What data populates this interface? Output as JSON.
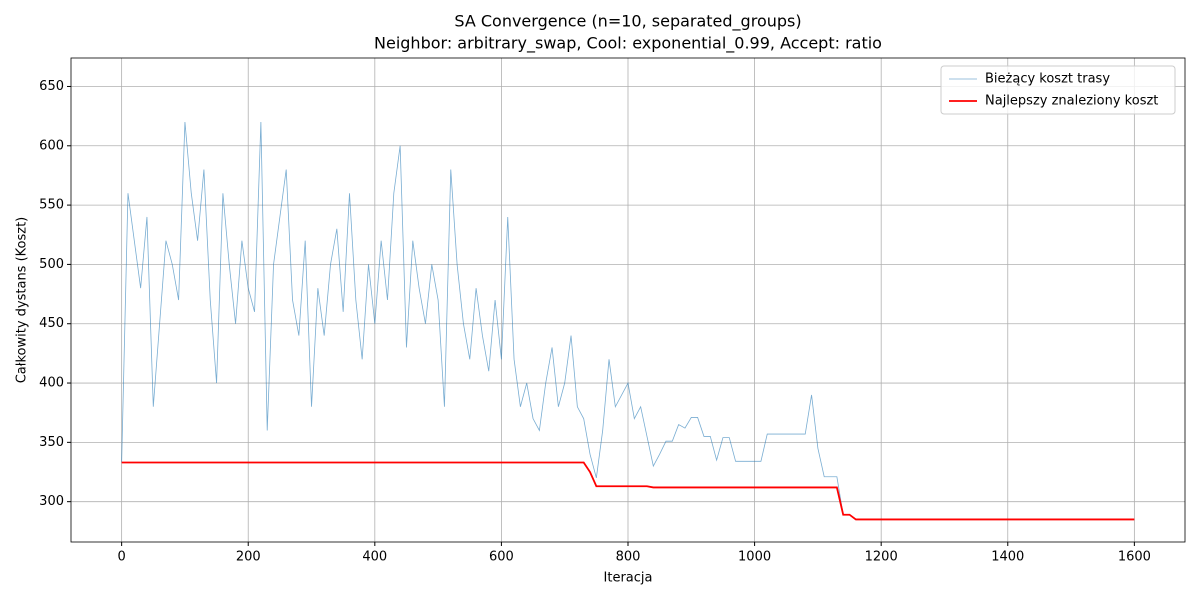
{
  "chart_data": {
    "type": "line",
    "title": "SA Convergence (n=10, separated_groups)",
    "subtitle": "Neighbor: arbitrary_swap, Cool: exponential_0.99, Accept: ratio",
    "x_label": "Iteracja",
    "y_label": "Całkowity dystans (Koszt)",
    "x": [
      0,
      10,
      20,
      30,
      40,
      50,
      60,
      70,
      80,
      90,
      100,
      110,
      120,
      130,
      140,
      150,
      160,
      170,
      180,
      190,
      200,
      210,
      220,
      230,
      240,
      250,
      260,
      270,
      280,
      290,
      300,
      310,
      320,
      330,
      340,
      350,
      360,
      370,
      380,
      390,
      400,
      410,
      420,
      430,
      440,
      450,
      460,
      470,
      480,
      490,
      500,
      510,
      520,
      530,
      540,
      550,
      560,
      570,
      580,
      590,
      600,
      610,
      620,
      630,
      640,
      650,
      660,
      670,
      680,
      690,
      700,
      710,
      720,
      730,
      740,
      750,
      760,
      770,
      780,
      790,
      800,
      810,
      820,
      830,
      840,
      850,
      860,
      870,
      880,
      890,
      900,
      910,
      920,
      930,
      940,
      950,
      960,
      970,
      980,
      990,
      1000,
      1010,
      1020,
      1030,
      1040,
      1050,
      1060,
      1070,
      1080,
      1090,
      1100,
      1110,
      1120,
      1130,
      1140,
      1150,
      1160,
      1170,
      1180,
      1190,
      1200,
      1210,
      1220,
      1230,
      1240,
      1250,
      1260,
      1270,
      1280,
      1290,
      1300,
      1310,
      1320,
      1330,
      1340,
      1350,
      1360,
      1370,
      1380,
      1390,
      1400,
      1410,
      1420,
      1430,
      1440,
      1450,
      1460,
      1470,
      1480,
      1490,
      1500,
      1510,
      1520,
      1530,
      1540,
      1550,
      1560,
      1570,
      1580,
      1590,
      1600
    ],
    "series": [
      {
        "name": "Bieżący koszt trasy",
        "color": "#1f77b4",
        "width": 0.8,
        "opacity": 0.6,
        "values": [
          333,
          560,
          520,
          480,
          540,
          380,
          450,
          520,
          500,
          470,
          620,
          560,
          520,
          580,
          470,
          400,
          560,
          500,
          450,
          520,
          480,
          460,
          620,
          360,
          500,
          540,
          580,
          470,
          440,
          520,
          380,
          480,
          440,
          500,
          530,
          460,
          560,
          470,
          420,
          500,
          450,
          520,
          470,
          560,
          600,
          430,
          520,
          480,
          450,
          500,
          470,
          380,
          580,
          500,
          450,
          420,
          480,
          440,
          410,
          470,
          420,
          540,
          420,
          380,
          400,
          370,
          360,
          400,
          430,
          380,
          400,
          440,
          380,
          370,
          340,
          320,
          360,
          420,
          380,
          390,
          400,
          370,
          380,
          355,
          330,
          340,
          351,
          351,
          365,
          362,
          371,
          371,
          355,
          355,
          335,
          354,
          354,
          334,
          334,
          334,
          334,
          334,
          357,
          357,
          357,
          357,
          357,
          357,
          357,
          390,
          345,
          321,
          321,
          321,
          289,
          289,
          285,
          285,
          285,
          285,
          285,
          285,
          285,
          285,
          285,
          285,
          285,
          285,
          285,
          285,
          285,
          285,
          285,
          285,
          285,
          285,
          285,
          285,
          285,
          285,
          285,
          285,
          285,
          285,
          285,
          285,
          285,
          285,
          285,
          285,
          285,
          285,
          285,
          285,
          285,
          285,
          285,
          285,
          285,
          285,
          285
        ]
      },
      {
        "name": "Najlepszy znaleziony koszt",
        "color": "#ff0000",
        "width": 1.8,
        "opacity": 1,
        "values": [
          333,
          333,
          333,
          333,
          333,
          333,
          333,
          333,
          333,
          333,
          333,
          333,
          333,
          333,
          333,
          333,
          333,
          333,
          333,
          333,
          333,
          333,
          333,
          333,
          333,
          333,
          333,
          333,
          333,
          333,
          333,
          333,
          333,
          333,
          333,
          333,
          333,
          333,
          333,
          333,
          333,
          333,
          333,
          333,
          333,
          333,
          333,
          333,
          333,
          333,
          333,
          333,
          333,
          333,
          333,
          333,
          333,
          333,
          333,
          333,
          333,
          333,
          333,
          333,
          333,
          333,
          333,
          333,
          333,
          333,
          333,
          333,
          333,
          333,
          325,
          313,
          313,
          313,
          313,
          313,
          313,
          313,
          313,
          313,
          312,
          312,
          312,
          312,
          312,
          312,
          312,
          312,
          312,
          312,
          312,
          312,
          312,
          312,
          312,
          312,
          312,
          312,
          312,
          312,
          312,
          312,
          312,
          312,
          312,
          312,
          312,
          312,
          312,
          312,
          289,
          289,
          285,
          285,
          285,
          285,
          285,
          285,
          285,
          285,
          285,
          285,
          285,
          285,
          285,
          285,
          285,
          285,
          285,
          285,
          285,
          285,
          285,
          285,
          285,
          285,
          285,
          285,
          285,
          285,
          285,
          285,
          285,
          285,
          285,
          285,
          285,
          285,
          285,
          285,
          285,
          285,
          285,
          285,
          285,
          285,
          285
        ]
      }
    ],
    "xlim": [
      -80,
      1680
    ],
    "ylim": [
      266,
      674
    ],
    "xticks": [
      0,
      200,
      400,
      600,
      800,
      1000,
      1200,
      1400,
      1600
    ],
    "yticks": [
      300,
      350,
      400,
      450,
      500,
      550,
      600,
      650
    ],
    "grid": true,
    "legend": "upper right"
  }
}
